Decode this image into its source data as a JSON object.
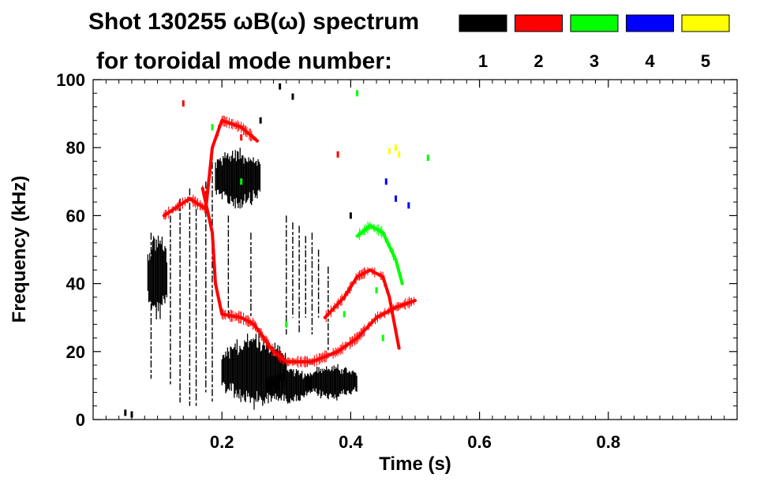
{
  "chart_data": {
    "type": "scatter",
    "title": "Shot 130255 ωB(ω) spectrum",
    "subtitle": "for toroidal mode number:",
    "xlabel": "Time (s)",
    "ylabel": "Frequency (kHz)",
    "xlim": [
      0.0,
      1.0
    ],
    "ylim": [
      0,
      100
    ],
    "xticks": [
      0.2,
      0.4,
      0.6,
      0.8
    ],
    "xtick_labels": [
      "0.2",
      "0.4",
      "0.6",
      "0.8"
    ],
    "yticks": [
      0,
      20,
      40,
      60,
      80,
      100
    ],
    "ytick_labels": [
      "0",
      "20",
      "40",
      "60",
      "80",
      "100"
    ],
    "legend_position": "top-right",
    "series": [
      {
        "name": "1",
        "color": "#000000",
        "blobs": [
          {
            "t0": 0.085,
            "t1": 0.115,
            "f0": 30,
            "f1": 55
          },
          {
            "t0": 0.19,
            "t1": 0.26,
            "f0": 62,
            "f1": 80
          },
          {
            "t0": 0.2,
            "t1": 0.3,
            "f0": 4,
            "f1": 25
          },
          {
            "t0": 0.27,
            "t1": 0.34,
            "f0": 5,
            "f1": 15
          },
          {
            "t0": 0.33,
            "t1": 0.41,
            "f0": 6,
            "f1": 16
          }
        ],
        "streaks": [
          {
            "t": 0.09,
            "f0": 12,
            "f1": 55
          },
          {
            "t": 0.12,
            "f0": 10,
            "f1": 60
          },
          {
            "t": 0.135,
            "f0": 5,
            "f1": 65
          },
          {
            "t": 0.15,
            "f0": 4,
            "f1": 68
          },
          {
            "t": 0.16,
            "f0": 4,
            "f1": 62
          },
          {
            "t": 0.175,
            "f0": 8,
            "f1": 70
          },
          {
            "t": 0.185,
            "f0": 5,
            "f1": 80
          },
          {
            "t": 0.21,
            "f0": 30,
            "f1": 60
          },
          {
            "t": 0.245,
            "f0": 30,
            "f1": 55
          },
          {
            "t": 0.3,
            "f0": 25,
            "f1": 60
          },
          {
            "t": 0.31,
            "f0": 30,
            "f1": 58
          },
          {
            "t": 0.32,
            "f0": 25,
            "f1": 57
          },
          {
            "t": 0.33,
            "f0": 30,
            "f1": 54
          },
          {
            "t": 0.34,
            "f0": 25,
            "f1": 55
          },
          {
            "t": 0.35,
            "f0": 30,
            "f1": 50
          },
          {
            "t": 0.365,
            "f0": 20,
            "f1": 45
          }
        ],
        "points": [
          [
            0.05,
            2
          ],
          [
            0.06,
            1.5
          ],
          [
            0.29,
            98
          ],
          [
            0.31,
            95
          ],
          [
            0.26,
            88
          ],
          [
            0.4,
            60
          ]
        ]
      },
      {
        "name": "2",
        "color": "#ff0000",
        "curve_upper": [
          [
            0.11,
            60
          ],
          [
            0.15,
            65
          ],
          [
            0.175,
            62
          ],
          [
            0.185,
            80
          ],
          [
            0.2,
            88
          ],
          [
            0.23,
            86
          ],
          [
            0.255,
            82
          ]
        ],
        "curve_lower": [
          [
            0.17,
            68
          ],
          [
            0.185,
            55
          ],
          [
            0.19,
            40
          ],
          [
            0.2,
            31
          ],
          [
            0.23,
            30
          ],
          [
            0.25,
            28
          ],
          [
            0.28,
            20
          ],
          [
            0.3,
            17
          ],
          [
            0.34,
            17
          ],
          [
            0.38,
            20
          ],
          [
            0.41,
            24
          ],
          [
            0.44,
            30
          ],
          [
            0.47,
            33
          ],
          [
            0.5,
            35
          ]
        ],
        "curve_right": [
          [
            0.36,
            30
          ],
          [
            0.39,
            36
          ],
          [
            0.41,
            42
          ],
          [
            0.43,
            44
          ],
          [
            0.45,
            42
          ],
          [
            0.46,
            36
          ],
          [
            0.47,
            26
          ],
          [
            0.475,
            21
          ]
        ],
        "points": [
          [
            0.14,
            93
          ],
          [
            0.23,
            83
          ],
          [
            0.38,
            78
          ]
        ]
      },
      {
        "name": "3",
        "color": "#00ff00",
        "curve": [
          [
            0.41,
            54
          ],
          [
            0.43,
            57
          ],
          [
            0.45,
            55
          ],
          [
            0.47,
            47
          ],
          [
            0.48,
            40
          ]
        ],
        "points": [
          [
            0.185,
            86
          ],
          [
            0.23,
            70
          ],
          [
            0.52,
            77
          ],
          [
            0.41,
            96
          ],
          [
            0.44,
            38
          ],
          [
            0.45,
            24
          ],
          [
            0.39,
            31
          ],
          [
            0.3,
            28
          ]
        ]
      },
      {
        "name": "4",
        "color": "#0000ff",
        "points": [
          [
            0.47,
            65
          ],
          [
            0.49,
            63
          ],
          [
            0.455,
            70
          ]
        ]
      },
      {
        "name": "5",
        "color": "#ffff00",
        "points": [
          [
            0.46,
            79
          ],
          [
            0.47,
            80
          ],
          [
            0.475,
            78
          ]
        ]
      }
    ]
  }
}
